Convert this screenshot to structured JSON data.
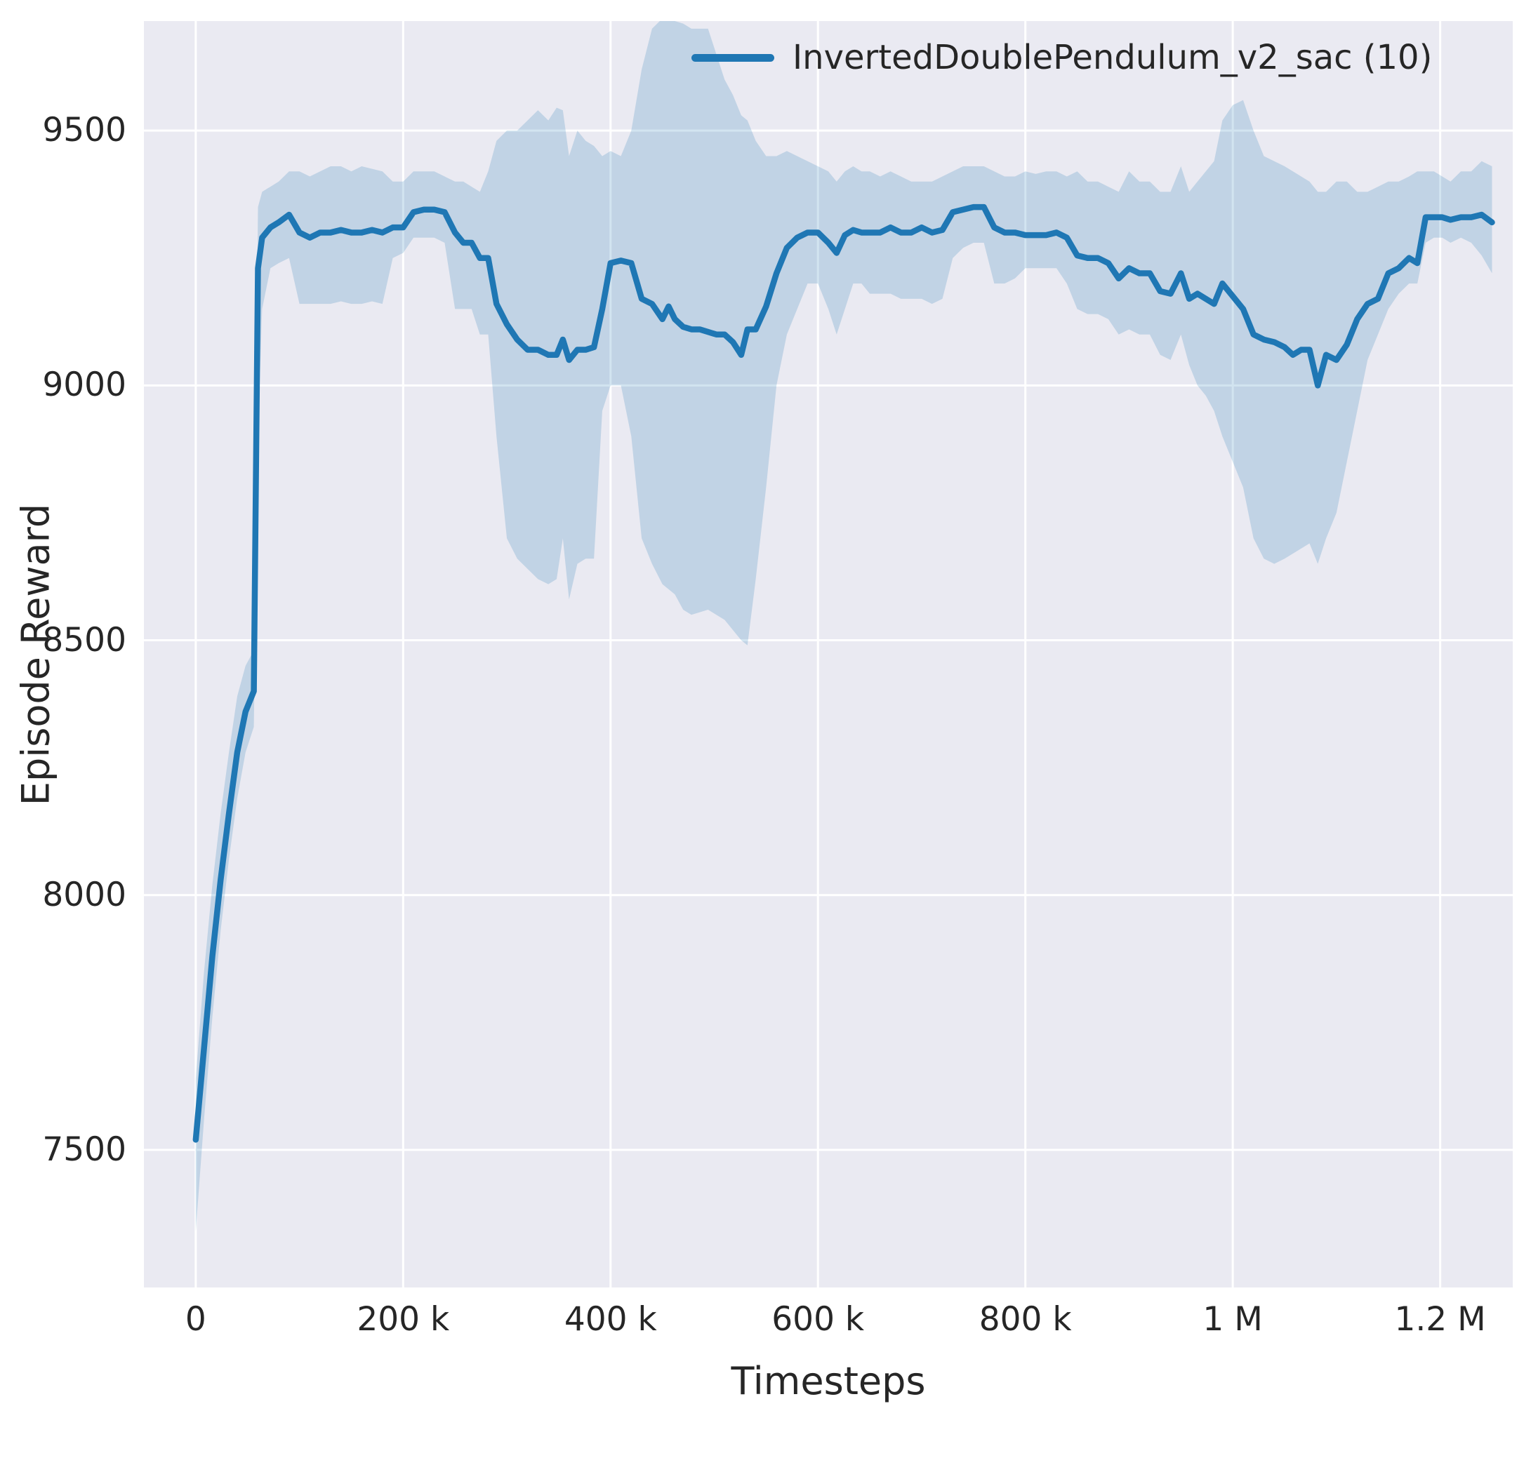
{
  "figure": {
    "plot_background": "#eaeaf2",
    "grid_color": "#ffffff",
    "text_color": "#262626"
  },
  "legend": {
    "label": "InvertedDoublePendulum_v2_sac (10)",
    "line_color": "#1f77b4"
  },
  "axes": {
    "xlabel": "Timesteps",
    "ylabel": "Episode Reward",
    "x_ticks": [
      {
        "value": 0,
        "label": "0"
      },
      {
        "value": 200000,
        "label": "200 k"
      },
      {
        "value": 400000,
        "label": "400 k"
      },
      {
        "value": 600000,
        "label": "600 k"
      },
      {
        "value": 800000,
        "label": "800 k"
      },
      {
        "value": 1000000,
        "label": "1 M"
      },
      {
        "value": 1200000,
        "label": "1.2 M"
      }
    ],
    "y_ticks": [
      {
        "value": 7500,
        "label": "7500"
      },
      {
        "value": 8000,
        "label": "8000"
      },
      {
        "value": 8500,
        "label": "8500"
      },
      {
        "value": 9000,
        "label": "9000"
      },
      {
        "value": 9500,
        "label": "9500"
      }
    ]
  },
  "chart_data": {
    "type": "line",
    "title": "",
    "xlabel": "Timesteps",
    "ylabel": "Episode Reward",
    "xlim": [
      -50000,
      1270000
    ],
    "ylim": [
      7230,
      9715
    ],
    "grid": true,
    "legend_position": "upper right inside plot, no frame",
    "band_opacity": 0.2,
    "x_multiplier": 1000,
    "series": [
      {
        "name": "InvertedDoublePendulum_v2_sac (10)",
        "color": "#1f77b4",
        "x": [
          0,
          8,
          16,
          24,
          32,
          40,
          48,
          56,
          60,
          64,
          72,
          80,
          90,
          100,
          110,
          120,
          130,
          140,
          150,
          160,
          170,
          180,
          190,
          200,
          210,
          220,
          230,
          240,
          250,
          258,
          266,
          274,
          282,
          290,
          300,
          310,
          320,
          330,
          340,
          348,
          354,
          360,
          368,
          376,
          384,
          392,
          400,
          410,
          420,
          430,
          440,
          450,
          456,
          462,
          470,
          478,
          486,
          494,
          502,
          510,
          518,
          526,
          532,
          540,
          550,
          560,
          570,
          580,
          590,
          600,
          610,
          618,
          626,
          634,
          642,
          650,
          660,
          670,
          680,
          690,
          700,
          710,
          720,
          730,
          740,
          750,
          760,
          770,
          780,
          790,
          800,
          810,
          820,
          830,
          840,
          850,
          860,
          870,
          880,
          890,
          900,
          910,
          920,
          930,
          940,
          950,
          958,
          966,
          974,
          982,
          990,
          1000,
          1010,
          1020,
          1030,
          1040,
          1050,
          1058,
          1066,
          1074,
          1082,
          1090,
          1100,
          1110,
          1120,
          1130,
          1140,
          1150,
          1160,
          1170,
          1178,
          1186,
          1194,
          1202,
          1210,
          1220,
          1230,
          1240,
          1250
        ],
        "mean": [
          7520,
          7700,
          7880,
          8030,
          8160,
          8280,
          8360,
          8400,
          9230,
          9290,
          9310,
          9320,
          9335,
          9300,
          9290,
          9300,
          9300,
          9305,
          9300,
          9300,
          9305,
          9300,
          9310,
          9310,
          9340,
          9345,
          9345,
          9340,
          9300,
          9280,
          9280,
          9250,
          9250,
          9160,
          9120,
          9090,
          9070,
          9070,
          9060,
          9060,
          9090,
          9050,
          9070,
          9070,
          9075,
          9150,
          9240,
          9245,
          9240,
          9170,
          9160,
          9130,
          9155,
          9130,
          9115,
          9110,
          9110,
          9105,
          9100,
          9100,
          9085,
          9060,
          9110,
          9110,
          9155,
          9220,
          9270,
          9290,
          9300,
          9300,
          9280,
          9260,
          9295,
          9305,
          9300,
          9300,
          9300,
          9310,
          9300,
          9300,
          9310,
          9300,
          9305,
          9340,
          9345,
          9350,
          9350,
          9310,
          9300,
          9300,
          9295,
          9295,
          9295,
          9300,
          9290,
          9255,
          9250,
          9250,
          9240,
          9210,
          9230,
          9220,
          9220,
          9185,
          9180,
          9220,
          9170,
          9180,
          9170,
          9160,
          9200,
          9175,
          9150,
          9100,
          9090,
          9085,
          9075,
          9060,
          9070,
          9070,
          9000,
          9060,
          9050,
          9080,
          9130,
          9160,
          9170,
          9220,
          9230,
          9250,
          9240,
          9330,
          9330,
          9330,
          9325,
          9330,
          9330,
          9335,
          9320
        ],
        "lower": [
          7340,
          7560,
          7760,
          7930,
          8070,
          8190,
          8280,
          8330,
          8900,
          9150,
          9230,
          9240,
          9250,
          9160,
          9160,
          9160,
          9160,
          9165,
          9160,
          9160,
          9165,
          9160,
          9250,
          9260,
          9290,
          9290,
          9290,
          9280,
          9150,
          9150,
          9150,
          9100,
          9100,
          8900,
          8700,
          8660,
          8640,
          8620,
          8610,
          8620,
          8700,
          8580,
          8650,
          8660,
          8660,
          8950,
          9000,
          9000,
          8900,
          8700,
          8650,
          8610,
          8600,
          8590,
          8560,
          8550,
          8555,
          8560,
          8550,
          8540,
          8520,
          8500,
          8490,
          8620,
          8800,
          9000,
          9100,
          9150,
          9200,
          9200,
          9150,
          9100,
          9150,
          9200,
          9200,
          9180,
          9180,
          9180,
          9170,
          9170,
          9170,
          9160,
          9170,
          9250,
          9270,
          9280,
          9280,
          9200,
          9200,
          9210,
          9230,
          9230,
          9230,
          9230,
          9200,
          9150,
          9140,
          9140,
          9130,
          9100,
          9110,
          9100,
          9100,
          9060,
          9050,
          9100,
          9040,
          9000,
          8980,
          8950,
          8900,
          8850,
          8800,
          8700,
          8660,
          8650,
          8660,
          8670,
          8680,
          8690,
          8650,
          8700,
          8750,
          8850,
          8950,
          9050,
          9100,
          9150,
          9180,
          9200,
          9200,
          9280,
          9290,
          9290,
          9280,
          9290,
          9280,
          9255,
          9220
        ],
        "upper": [
          7640,
          7850,
          8020,
          8160,
          8280,
          8390,
          8450,
          8480,
          9350,
          9380,
          9390,
          9400,
          9420,
          9420,
          9410,
          9420,
          9430,
          9430,
          9420,
          9430,
          9425,
          9420,
          9400,
          9400,
          9420,
          9420,
          9420,
          9410,
          9400,
          9400,
          9390,
          9380,
          9420,
          9480,
          9500,
          9500,
          9520,
          9540,
          9520,
          9545,
          9540,
          9450,
          9500,
          9480,
          9470,
          9450,
          9460,
          9450,
          9500,
          9620,
          9700,
          9720,
          9720,
          9715,
          9710,
          9700,
          9700,
          9700,
          9650,
          9600,
          9570,
          9530,
          9520,
          9480,
          9450,
          9450,
          9460,
          9450,
          9440,
          9430,
          9420,
          9400,
          9420,
          9430,
          9420,
          9420,
          9410,
          9420,
          9410,
          9400,
          9400,
          9400,
          9410,
          9420,
          9430,
          9430,
          9430,
          9420,
          9410,
          9410,
          9420,
          9415,
          9420,
          9420,
          9410,
          9420,
          9400,
          9400,
          9390,
          9380,
          9420,
          9400,
          9400,
          9380,
          9380,
          9430,
          9380,
          9400,
          9420,
          9440,
          9520,
          9550,
          9560,
          9500,
          9450,
          9440,
          9430,
          9420,
          9410,
          9400,
          9380,
          9380,
          9400,
          9400,
          9380,
          9380,
          9390,
          9400,
          9400,
          9410,
          9420,
          9420,
          9420,
          9410,
          9400,
          9420,
          9420,
          9440,
          9430
        ]
      }
    ]
  }
}
